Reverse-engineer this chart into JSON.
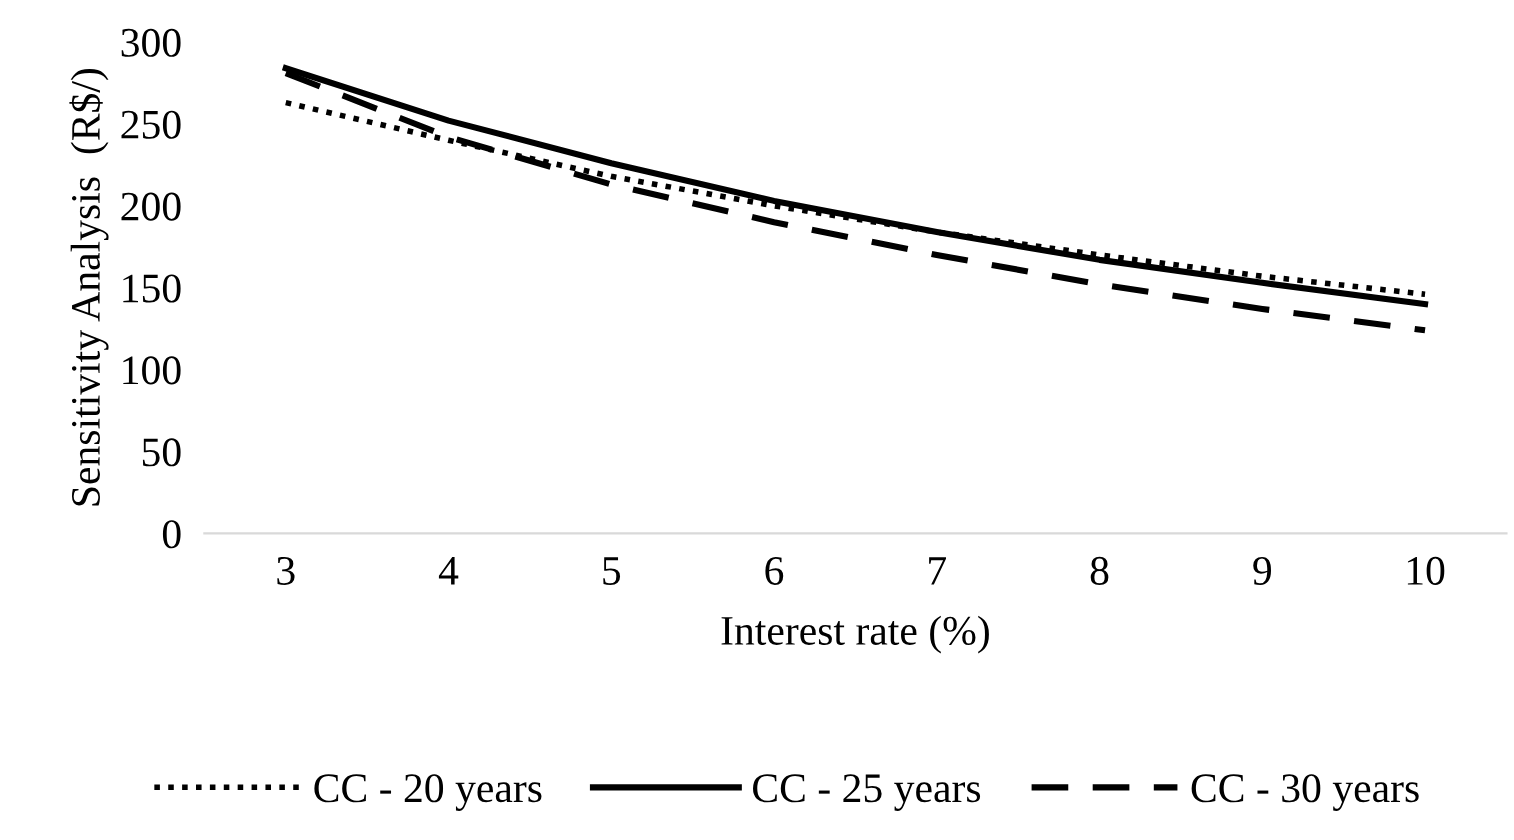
{
  "chart_data": {
    "type": "line",
    "xlabel": "Interest rate (%)",
    "ylabel": "Sensitivity Analysis  (R$/)",
    "categories": [
      "3",
      "4",
      "5",
      "6",
      "7",
      "8",
      "9",
      "10"
    ],
    "series": [
      {
        "name": "CC - 20 years",
        "color": "#000000",
        "line_style": "dotted",
        "values": [
          263,
          240,
          218,
          200,
          184,
          170,
          157,
          146
        ]
      },
      {
        "name": "CC - 25 years",
        "color": "#000000",
        "line_style": "solid",
        "values": [
          284,
          252,
          226,
          203,
          184,
          167,
          153,
          140
        ]
      },
      {
        "name": "CC - 30 years",
        "color": "#000000",
        "line_style": "dashed",
        "values": [
          281,
          242,
          213,
          190,
          170,
          152,
          137,
          124
        ]
      }
    ],
    "ylim": [
      0,
      300
    ],
    "yticks": [
      0,
      50,
      100,
      150,
      200,
      250,
      300
    ],
    "grid": false,
    "legend": "bottom"
  }
}
